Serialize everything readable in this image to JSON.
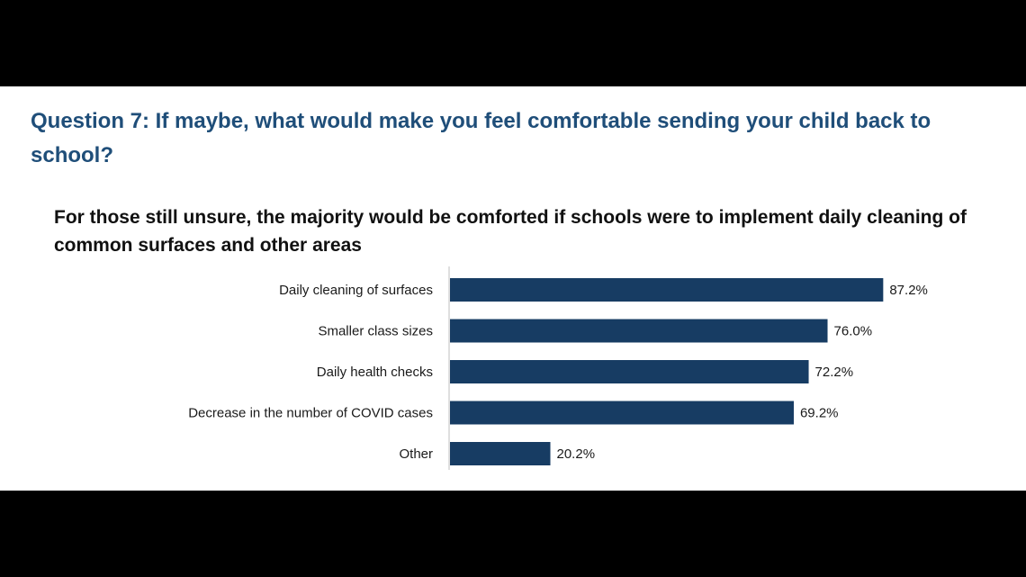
{
  "header": {
    "question": "Question 7: If maybe, what would make you feel comfortable sending your child back to school?"
  },
  "chart_data": {
    "type": "bar",
    "orientation": "horizontal",
    "title": "For those still unsure, the majority would be comforted if schools were to implement daily cleaning of common surfaces and other areas",
    "categories": [
      "Daily cleaning of surfaces",
      "Smaller class sizes",
      "Daily health checks",
      "Decrease in the number of COVID cases",
      "Other"
    ],
    "values": [
      87.2,
      76.0,
      72.2,
      69.2,
      20.2
    ],
    "value_labels": [
      "87.2%",
      "76.0%",
      "72.2%",
      "69.2%",
      "20.2%"
    ],
    "xlim": [
      0,
      100
    ],
    "xlabel": "",
    "ylabel": "",
    "grid": false,
    "bar_color": "#173c63",
    "axis_color": "#bfbfbf"
  }
}
